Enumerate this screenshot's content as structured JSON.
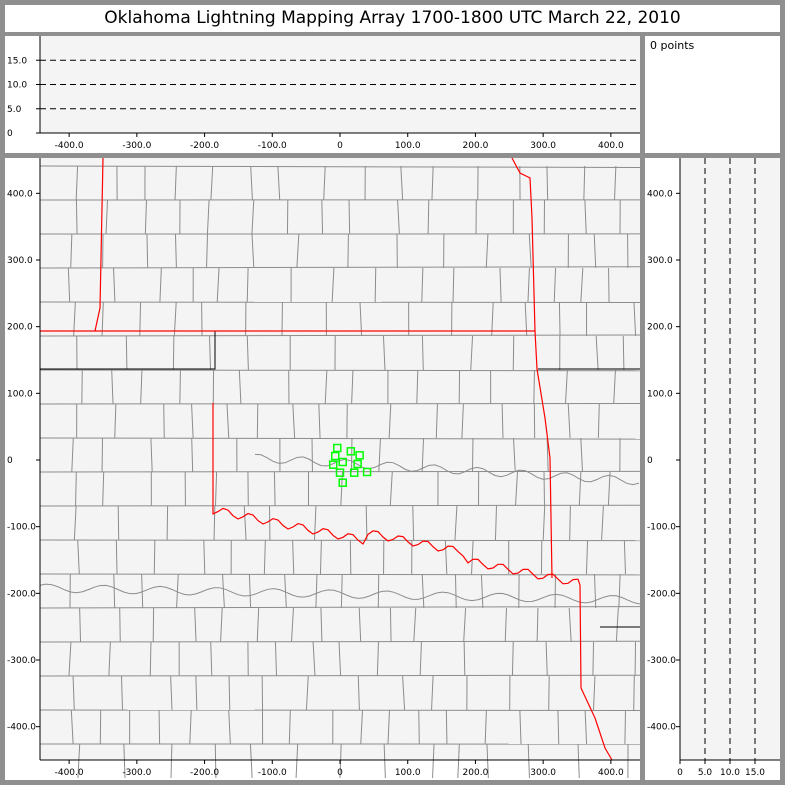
{
  "title": "Oklahoma Lightning Mapping Array   1700-1800 UTC  March 22, 2010",
  "info": {
    "point_count_label": "0 points"
  },
  "colors": {
    "background": "#f4f4f4",
    "frame": "#8f8f8f",
    "state_border": "#ff0000",
    "county_border": "#8c8c8c",
    "station": "#00ff00"
  },
  "chart_data": [
    {
      "type": "scatter",
      "panel": "altitude-vs-east-west",
      "xlim": [
        -443,
        443
      ],
      "ylim": [
        0,
        20
      ],
      "xticks": [
        "-400.0",
        "-300.0",
        "-200.0",
        "-100.0",
        "0",
        "100.0",
        "200.0",
        "300.0",
        "400.0"
      ],
      "xtick_values": [
        -400,
        -300,
        -200,
        -100,
        0,
        100,
        200,
        300,
        400
      ],
      "yticks": [
        "0",
        "5.0",
        "10.0",
        "15.0"
      ],
      "ytick_values": [
        0,
        5,
        10,
        15
      ],
      "dashed_gridlines": [
        5,
        10,
        15
      ],
      "points": []
    },
    {
      "type": "scatter",
      "panel": "plan-view-map",
      "xlim": [
        -443,
        443
      ],
      "ylim": [
        -450,
        453
      ],
      "xticks": [
        "-400.0",
        "-300.0",
        "-200.0",
        "-100.0",
        "0",
        "100.0",
        "200.0",
        "300.0",
        "400.0"
      ],
      "xtick_values": [
        -400,
        -300,
        -200,
        -100,
        0,
        100,
        200,
        300,
        400
      ],
      "yticks": [
        "-400.0",
        "-300.0",
        "-200.0",
        "-100.0",
        "0",
        "100.0",
        "200.0",
        "300.0",
        "400.0"
      ],
      "ytick_values": [
        -400,
        -300,
        -200,
        -100,
        0,
        100,
        200,
        300,
        400
      ],
      "stations": [
        [
          -4,
          18
        ],
        [
          -7,
          6
        ],
        [
          -10,
          -7
        ],
        [
          4,
          -3
        ],
        [
          0,
          -19
        ],
        [
          16,
          13
        ],
        [
          29,
          7
        ],
        [
          26,
          -6
        ],
        [
          21,
          -19
        ],
        [
          40,
          -18
        ],
        [
          4,
          -34
        ]
      ],
      "points": []
    },
    {
      "type": "scatter",
      "panel": "north-south-vs-altitude",
      "xlim": [
        0,
        20
      ],
      "ylim": [
        -450,
        453
      ],
      "xticks": [
        "0",
        "5.0",
        "10.0",
        "15.0"
      ],
      "xtick_values": [
        0,
        5,
        10,
        15
      ],
      "dashed_gridlines": [
        5,
        10,
        15
      ],
      "points": []
    }
  ]
}
